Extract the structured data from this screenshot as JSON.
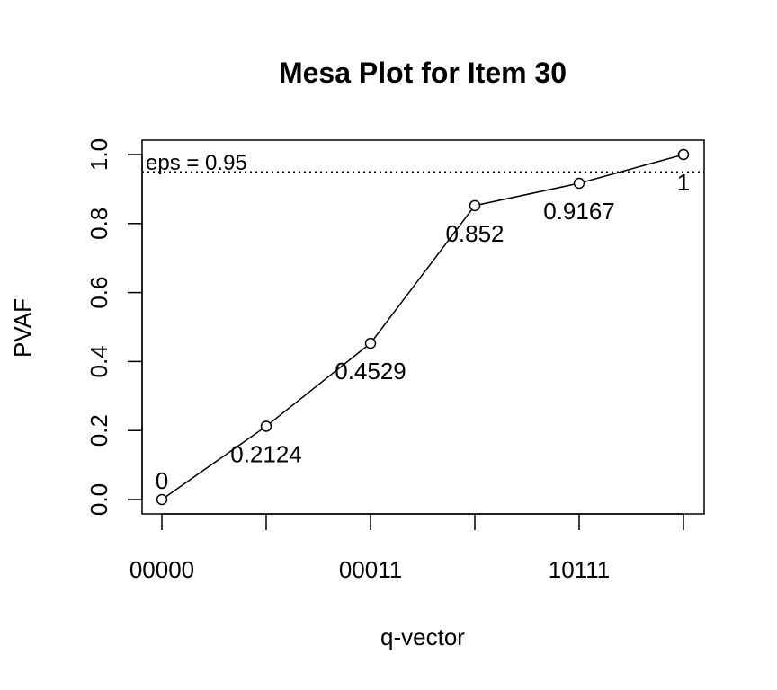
{
  "chart_data": {
    "type": "line",
    "title": "Mesa Plot for Item 30",
    "xlabel": "q-vector",
    "ylabel": "PVAF",
    "ylim": [
      0,
      1
    ],
    "y_ticks": [
      "0.0",
      "0.2",
      "0.4",
      "0.6",
      "0.8",
      "1.0"
    ],
    "x_tick_labels": [
      "00000",
      "",
      "00011",
      "",
      "10111",
      ""
    ],
    "x": [
      1,
      2,
      3,
      4,
      5,
      6
    ],
    "values": [
      0,
      0.2124,
      0.4529,
      0.852,
      0.9167,
      1
    ],
    "point_labels": [
      "0",
      "0.2124",
      "0.4529",
      "0.852",
      "0.9167",
      "1"
    ],
    "threshold": {
      "value": 0.95,
      "label": "eps = 0.95",
      "style": "dotted"
    }
  }
}
